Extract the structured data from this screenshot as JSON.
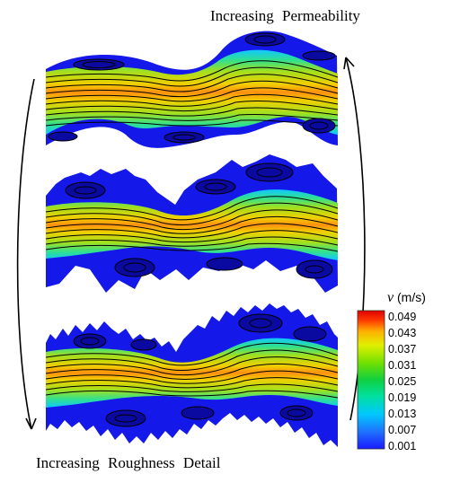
{
  "labels": {
    "top": "Increasing Permeability",
    "bottom": "Increasing Roughness Detail"
  },
  "colorbar": {
    "var": "v",
    "unit": "(m/s)",
    "ticks": [
      "0.049",
      "0.043",
      "0.037",
      "0.031",
      "0.025",
      "0.019",
      "0.013",
      "0.007",
      "0.001"
    ],
    "colors": [
      "#1a1aff",
      "#1f6fff",
      "#00c8ff",
      "#00e0a0",
      "#10d040",
      "#70e000",
      "#e0f000",
      "#ffb000",
      "#ff3a00",
      "#e00000"
    ]
  },
  "panels": [
    {
      "name": "smooth-channel"
    },
    {
      "name": "moderately-rough-channel"
    },
    {
      "name": "highly-rough-channel"
    }
  ]
}
